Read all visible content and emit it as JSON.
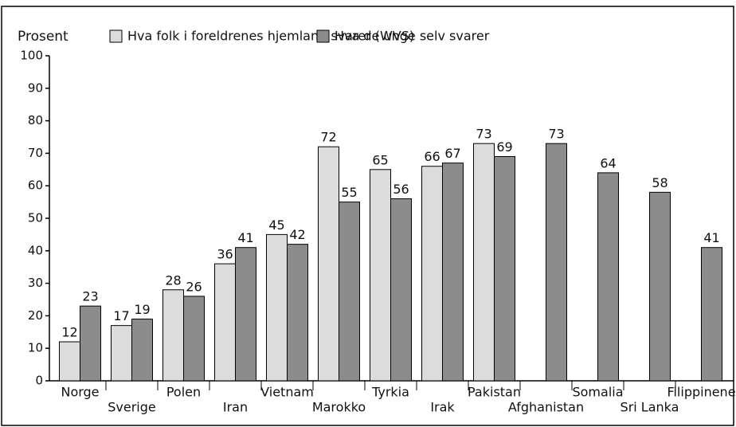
{
  "chart_data": {
    "type": "bar",
    "y_label": "Prosent",
    "categories": [
      "Norge",
      "Sverige",
      "Polen",
      "Iran",
      "Vietnam",
      "Marokko",
      "Tyrkia",
      "Irak",
      "Pakistan",
      "Afghanistan",
      "Somalia",
      "Sri Lanka",
      "Filippinene"
    ],
    "series": [
      {
        "name": "Hva folk i foreldrenes hjemland svarer (WVS)",
        "color": "#dcdcdc",
        "values": [
          12,
          17,
          28,
          36,
          45,
          72,
          65,
          66,
          73,
          null,
          null,
          null,
          null
        ]
      },
      {
        "name": "Hva de unge selv svarer",
        "color": "#8c8c8c",
        "values": [
          23,
          19,
          26,
          41,
          42,
          55,
          56,
          67,
          69,
          73,
          64,
          58,
          41
        ]
      }
    ],
    "ylim": [
      0,
      100
    ],
    "yticks": [
      0,
      10,
      20,
      30,
      40,
      50,
      60,
      70,
      80,
      90,
      100
    ]
  }
}
